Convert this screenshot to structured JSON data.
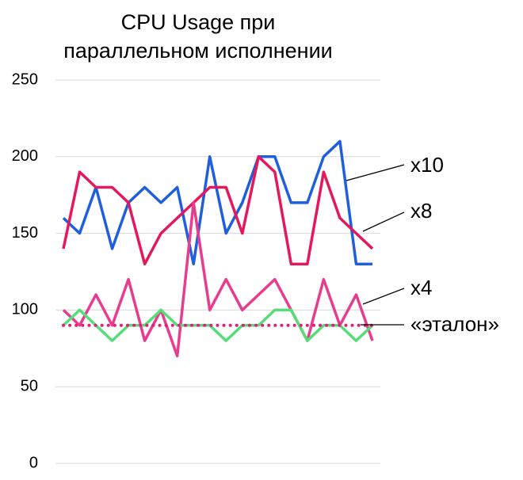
{
  "chart_data": {
    "type": "line",
    "title": [
      "CPU Usage при",
      "параллельном исполнении"
    ],
    "categories": [
      null,
      null,
      null,
      null,
      null,
      null,
      null,
      null,
      null,
      null,
      null,
      null,
      null,
      null,
      null,
      null,
      null,
      null,
      null,
      null
    ],
    "series": [
      {
        "name": "x10",
        "color": "#1f5fdd",
        "values": [
          160,
          150,
          180,
          140,
          170,
          180,
          170,
          180,
          130,
          200,
          150,
          170,
          200,
          200,
          170,
          170,
          200,
          210,
          130,
          130
        ]
      },
      {
        "name": "x8",
        "color": "#e4185a",
        "values": [
          140,
          190,
          180,
          180,
          170,
          130,
          150,
          160,
          170,
          180,
          180,
          150,
          200,
          190,
          130,
          130,
          190,
          160,
          150,
          140
        ]
      },
      {
        "name": "x4",
        "color": "#e83c8e",
        "values": [
          100,
          90,
          110,
          90,
          120,
          80,
          100,
          70,
          170,
          100,
          120,
          100,
          110,
          120,
          100,
          80,
          120,
          90,
          110,
          80
        ]
      },
      {
        "color": "#55dd77",
        "values": [
          90,
          100,
          90,
          80,
          90,
          90,
          100,
          90,
          90,
          90,
          80,
          90,
          90,
          100,
          100,
          80,
          90,
          90,
          80,
          90
        ]
      },
      {
        "name": "«эталон»",
        "color": "#e0207a",
        "dotted": true,
        "values": [
          90,
          90,
          90,
          90,
          90,
          90,
          90,
          90,
          90,
          90,
          90,
          90,
          90,
          90,
          90,
          90,
          90,
          90,
          90,
          90
        ]
      }
    ],
    "ylim": [
      0,
      250
    ],
    "yticks": [
      0,
      50,
      100,
      150,
      200,
      250
    ],
    "grid": true
  }
}
